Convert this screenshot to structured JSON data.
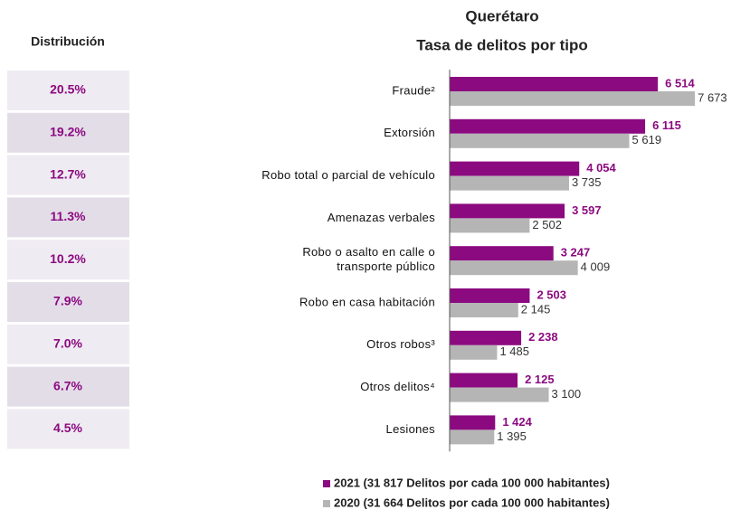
{
  "distribution": {
    "title": "Distribución",
    "rows": [
      "20.5%",
      "19.2%",
      "12.7%",
      "11.3%",
      "10.2%",
      "7.9%",
      "7.0%",
      "6.7%",
      "4.5%"
    ]
  },
  "chart_data": {
    "type": "bar",
    "orientation": "horizontal",
    "title": "Querétaro",
    "subtitle": "Tasa de delitos por tipo",
    "categories": [
      "Fraude²",
      "Extorsión",
      "Robo total o parcial de vehículo",
      "Amenazas verbales",
      "Robo o asalto en calle o\ntransporte público",
      "Robo en casa habitación",
      "Otros robos³",
      "Otros delitos⁴",
      "Lesiones"
    ],
    "series": [
      {
        "name": "2021 (31 817 Delitos por cada 100 000 habitantes)",
        "color": "#8c0a80",
        "values": [
          6514,
          6115,
          4054,
          3597,
          3247,
          2503,
          2238,
          2125,
          1424
        ],
        "value_labels": [
          "6 514",
          "6 115",
          "4 054",
          "3 597",
          "3 247",
          "2 503",
          "2 238",
          "2 125",
          "1 424"
        ]
      },
      {
        "name": "2020 (31 664 Delitos por cada 100 000 habitantes)",
        "color": "#b5b5b5",
        "values": [
          7673,
          5619,
          3735,
          2502,
          4009,
          2145,
          1485,
          3100,
          1395
        ],
        "value_labels": [
          "7 673",
          "5 619",
          "3 735",
          "2 502",
          "4 009",
          "2 145",
          "1 485",
          "3 100",
          "1 395"
        ]
      }
    ],
    "xlim": [
      0,
      9000
    ]
  }
}
